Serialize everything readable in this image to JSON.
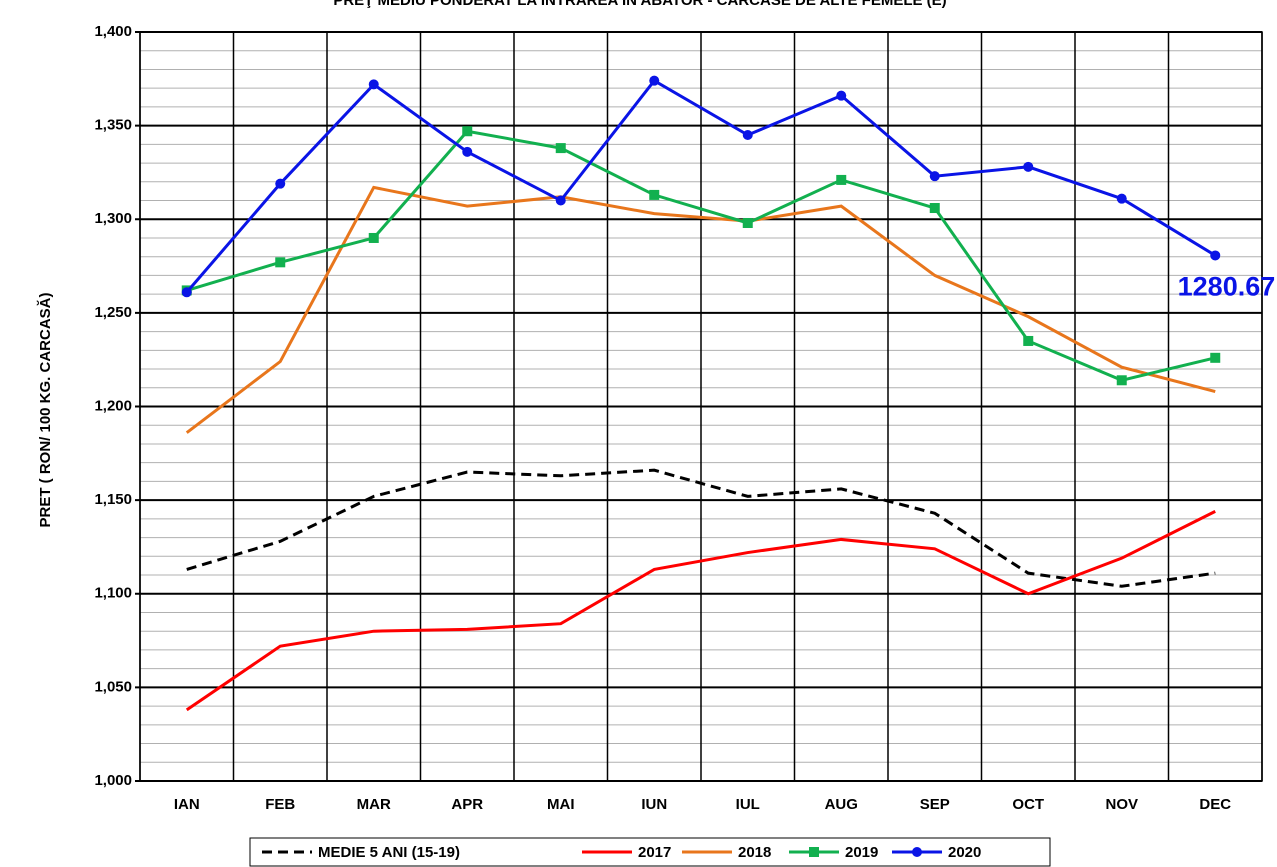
{
  "chart_data": {
    "type": "line",
    "title": "PREŢ MEDIU PONDERAT LA INTRAREA IN ABATOR - CARCASE DE ALTE FEMELE (E)",
    "y_label": "PRET ( RON/ 100 KG. CARCASĂ)",
    "categories": [
      "IAN",
      "FEB",
      "MAR",
      "APR",
      "MAI",
      "IUN",
      "IUL",
      "AUG",
      "SEP",
      "OCT",
      "NOV",
      "DEC"
    ],
    "ylim": [
      1000,
      1400
    ],
    "yticks": [
      {
        "value": 1000,
        "label": "1,000"
      },
      {
        "value": 1050,
        "label": "1,050"
      },
      {
        "value": 1100,
        "label": "1,100"
      },
      {
        "value": 1150,
        "label": "1,150"
      },
      {
        "value": 1200,
        "label": "1,200"
      },
      {
        "value": 1250,
        "label": "1,250"
      },
      {
        "value": 1300,
        "label": "1,300"
      },
      {
        "value": 1350,
        "label": "1,350"
      },
      {
        "value": 1400,
        "label": "1,400"
      }
    ],
    "yminorticks": [
      1010,
      1020,
      1030,
      1040,
      1060,
      1070,
      1080,
      1090,
      1110,
      1120,
      1130,
      1140,
      1160,
      1170,
      1180,
      1190,
      1210,
      1220,
      1230,
      1240,
      1260,
      1270,
      1280,
      1290,
      1310,
      1320,
      1330,
      1340,
      1360,
      1370,
      1380,
      1390
    ],
    "grid": true,
    "legend": "bottom",
    "series": [
      {
        "name": "MEDIE 5 ANI (15-19)",
        "color": "#000000",
        "dash": true,
        "marker": null,
        "values": [
          1113,
          1128,
          1152,
          1165,
          1163,
          1166,
          1152,
          1156,
          1143,
          1111,
          1104,
          1111
        ]
      },
      {
        "name": "2017",
        "color": "#ff0000",
        "dash": false,
        "marker": null,
        "values": [
          1038,
          1072,
          1080,
          1081,
          1084,
          1113,
          1122,
          1129,
          1124,
          1100,
          1119,
          1144
        ]
      },
      {
        "name": "2018",
        "color": "#e8761c",
        "dash": false,
        "marker": null,
        "values": [
          1186,
          1224,
          1317,
          1307,
          1312,
          1303,
          1299,
          1307,
          1270,
          1248,
          1221,
          1208
        ]
      },
      {
        "name": "2019",
        "color": "#12b04f",
        "dash": false,
        "marker": "square",
        "values": [
          1262,
          1277,
          1290,
          1347,
          1338,
          1313,
          1298,
          1321,
          1306,
          1235,
          1214,
          1226
        ]
      },
      {
        "name": "2020",
        "color": "#0a14e6",
        "dash": false,
        "marker": "circle",
        "values": [
          1261,
          1319,
          1372,
          1336,
          1310,
          1374,
          1345,
          1366,
          1323,
          1328,
          1311,
          1280.67
        ],
        "value_labels": [
          null,
          null,
          null,
          null,
          null,
          null,
          null,
          null,
          null,
          null,
          null,
          "1280.67"
        ]
      }
    ]
  }
}
